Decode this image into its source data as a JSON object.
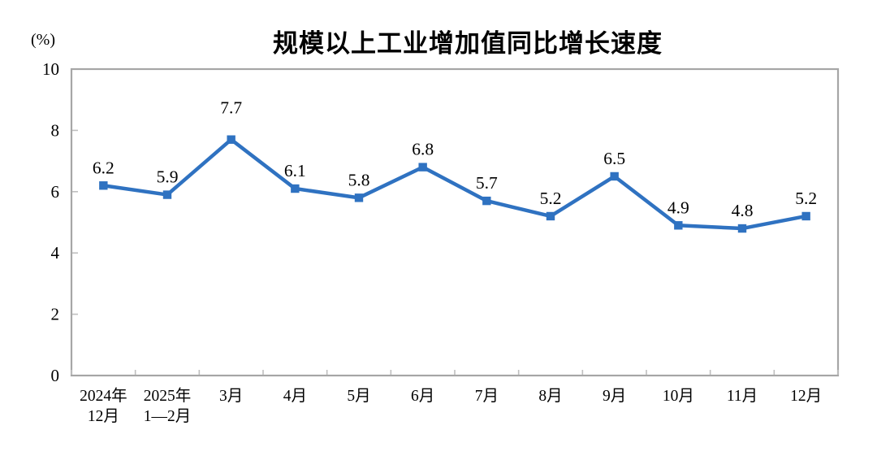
{
  "chart_data": {
    "type": "line",
    "title": "规模以上工业增加值同比增长速度",
    "unit_label": "(%)",
    "categories": [
      "2024年\n12月",
      "2025年\n1—2月",
      "3月",
      "4月",
      "5月",
      "6月",
      "7月",
      "8月",
      "9月",
      "10月",
      "11月",
      "12月"
    ],
    "values": [
      6.2,
      5.9,
      7.7,
      6.1,
      5.8,
      6.8,
      5.7,
      5.2,
      6.5,
      4.9,
      4.8,
      5.2
    ],
    "data_labels": [
      "6.2",
      "5.9",
      "7.7",
      "6.1",
      "5.8",
      "6.8",
      "5.7",
      "5.2",
      "6.5",
      "4.9",
      "4.8",
      "5.2"
    ],
    "y_ticks": [
      0,
      2,
      4,
      6,
      8,
      10
    ],
    "ylim": [
      0,
      10
    ],
    "xlabel": "",
    "ylabel": "(%)",
    "grid": false,
    "legend": "none",
    "colors": {
      "line": "#2F72C1",
      "marker": "#2F72C1",
      "plot_border": "#A6A6A6",
      "tick": "#BFBFBF",
      "text": "#000000",
      "background": "#FFFFFF"
    }
  }
}
